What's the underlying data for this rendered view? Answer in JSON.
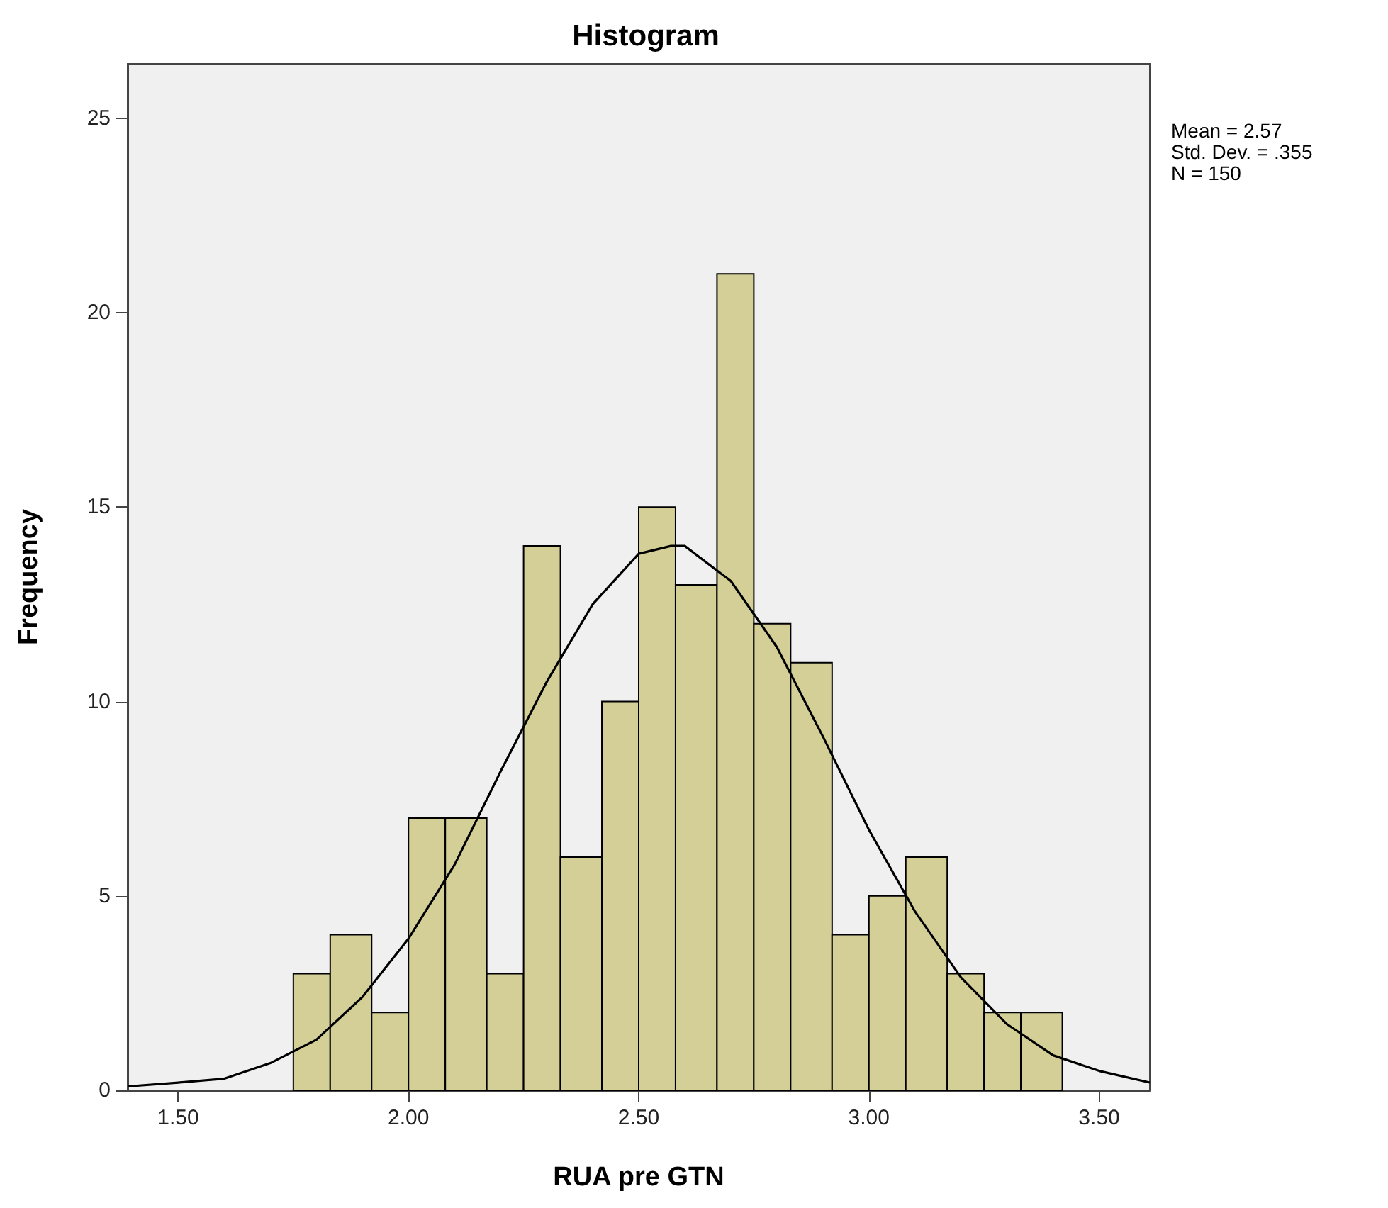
{
  "chart_data": {
    "type": "histogram",
    "title": "Histogram",
    "xlabel": "RUA pre GTN",
    "ylabel": "Frequency",
    "annotations": [
      "Mean = 2.57",
      "Std. Dev. = .355",
      "N = 150"
    ],
    "series": [
      {
        "color": "#d3cf97",
        "bins": [
          1.75,
          1.83,
          1.92,
          2.0,
          2.08,
          2.17,
          2.25,
          2.33,
          2.42,
          2.5,
          2.58,
          2.67,
          2.75,
          2.83,
          2.92,
          3.0,
          3.08,
          3.17,
          3.25,
          3.33,
          3.42
        ],
        "values": [
          3,
          4,
          2,
          7,
          7,
          3,
          14,
          6,
          10,
          15,
          13,
          21,
          12,
          11,
          4,
          5,
          6,
          3,
          2,
          2
        ]
      },
      {
        "type": "line",
        "color": "#000000",
        "x": [
          1.39,
          1.5,
          1.6,
          1.7,
          1.8,
          1.9,
          2.0,
          2.1,
          2.2,
          2.3,
          2.4,
          2.5,
          2.57,
          2.6,
          2.7,
          2.8,
          2.9,
          3.0,
          3.1,
          3.2,
          3.3,
          3.4,
          3.5,
          3.61
        ],
        "values": [
          0.1,
          0.2,
          0.3,
          0.7,
          1.3,
          2.4,
          3.9,
          5.8,
          8.2,
          10.5,
          12.5,
          13.8,
          14.0,
          14.0,
          13.1,
          11.4,
          9.1,
          6.7,
          4.6,
          2.9,
          1.7,
          0.9,
          0.5,
          0.2
        ]
      }
    ],
    "xlim": [
      1.39,
      3.61
    ],
    "xticks": [
      {
        "value": 1.5,
        "label": "1.50"
      },
      {
        "value": 2.0,
        "label": "2.00"
      },
      {
        "value": 2.5,
        "label": "2.50"
      },
      {
        "value": 3.0,
        "label": "3.00"
      },
      {
        "value": 3.5,
        "label": "3.50"
      }
    ],
    "ylim": [
      0,
      26.4
    ],
    "yticks": [
      0,
      5,
      10,
      15,
      20,
      25
    ],
    "grid": false,
    "marker": "none",
    "line_style": "solid"
  }
}
